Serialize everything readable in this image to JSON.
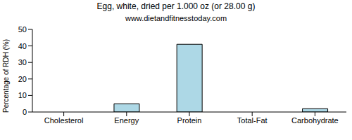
{
  "chart_data": {
    "type": "bar",
    "title": "Egg, white, dried per 1.000 oz (or 28.00 g)",
    "subtitle": "www.dietandfitnesstoday.com",
    "y_label": "Percentage of RDH (%)",
    "categories": [
      "Cholesterol",
      "Energy",
      "Protein",
      "Total-Fat",
      "Carbohydrate"
    ],
    "values": [
      0,
      5,
      41,
      0,
      2
    ],
    "color": "#add8e6",
    "ylim": [
      0,
      50
    ],
    "yticks": [
      0,
      10,
      20,
      30,
      40,
      50
    ],
    "grid": false
  }
}
